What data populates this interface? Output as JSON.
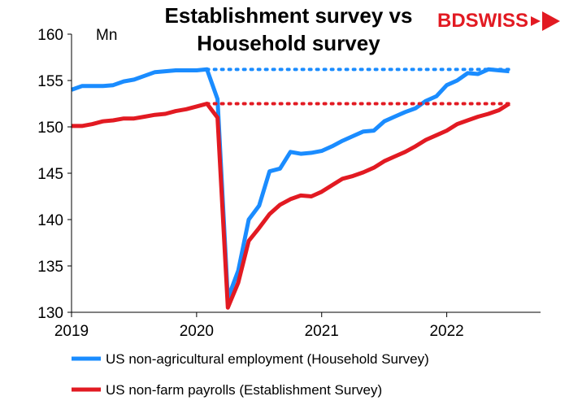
{
  "logo": {
    "text": "BDSWISS",
    "color": "#e21a22"
  },
  "chart_data": {
    "type": "line",
    "title_line1": "Establishment survey vs",
    "title_line2": "Household survey",
    "unit_label": "Mn",
    "xlabel": "",
    "ylabel": "",
    "ylim": [
      130,
      160
    ],
    "yticks": [
      130,
      135,
      140,
      145,
      150,
      155,
      160
    ],
    "xlim": [
      2019.0,
      2022.75
    ],
    "xticks": [
      {
        "value": 2019,
        "label": "2019"
      },
      {
        "value": 2020,
        "label": "2020"
      },
      {
        "value": 2021,
        "label": "2021"
      },
      {
        "value": 2022,
        "label": "2022"
      }
    ],
    "grid": false,
    "legend_position": "bottom",
    "series": [
      {
        "name": "US non-agricultural employment (Household Survey)",
        "color": "#1a8cff",
        "points": [
          [
            2019.0,
            154.0
          ],
          [
            2019.083,
            154.4
          ],
          [
            2019.167,
            154.4
          ],
          [
            2019.25,
            154.4
          ],
          [
            2019.333,
            154.5
          ],
          [
            2019.417,
            154.9
          ],
          [
            2019.5,
            155.1
          ],
          [
            2019.583,
            155.5
          ],
          [
            2019.667,
            155.9
          ],
          [
            2019.75,
            156.0
          ],
          [
            2019.833,
            156.1
          ],
          [
            2019.917,
            156.1
          ],
          [
            2020.0,
            156.1
          ],
          [
            2020.083,
            156.2
          ],
          [
            2020.167,
            153.0
          ],
          [
            2020.25,
            131.5
          ],
          [
            2020.333,
            134.5
          ],
          [
            2020.417,
            140.0
          ],
          [
            2020.5,
            141.5
          ],
          [
            2020.583,
            145.2
          ],
          [
            2020.667,
            145.5
          ],
          [
            2020.75,
            147.3
          ],
          [
            2020.833,
            147.1
          ],
          [
            2020.917,
            147.2
          ],
          [
            2021.0,
            147.4
          ],
          [
            2021.083,
            147.9
          ],
          [
            2021.167,
            148.5
          ],
          [
            2021.25,
            149.0
          ],
          [
            2021.333,
            149.5
          ],
          [
            2021.417,
            149.6
          ],
          [
            2021.5,
            150.6
          ],
          [
            2021.583,
            151.1
          ],
          [
            2021.667,
            151.6
          ],
          [
            2021.75,
            152.0
          ],
          [
            2021.833,
            152.8
          ],
          [
            2021.917,
            153.3
          ],
          [
            2022.0,
            154.5
          ],
          [
            2022.083,
            155.0
          ],
          [
            2022.167,
            155.8
          ],
          [
            2022.25,
            155.7
          ],
          [
            2022.333,
            156.2
          ],
          [
            2022.417,
            156.1
          ],
          [
            2022.5,
            156.0
          ]
        ],
        "reference_level": 156.2
      },
      {
        "name": "US non-farm payrolls (Establishment Survey)",
        "color": "#e21a22",
        "points": [
          [
            2019.0,
            150.1
          ],
          [
            2019.083,
            150.1
          ],
          [
            2019.167,
            150.3
          ],
          [
            2019.25,
            150.6
          ],
          [
            2019.333,
            150.7
          ],
          [
            2019.417,
            150.9
          ],
          [
            2019.5,
            150.9
          ],
          [
            2019.583,
            151.1
          ],
          [
            2019.667,
            151.3
          ],
          [
            2019.75,
            151.4
          ],
          [
            2019.833,
            151.7
          ],
          [
            2019.917,
            151.9
          ],
          [
            2020.0,
            152.2
          ],
          [
            2020.083,
            152.5
          ],
          [
            2020.167,
            151.0
          ],
          [
            2020.25,
            130.5
          ],
          [
            2020.333,
            133.2
          ],
          [
            2020.417,
            137.7
          ],
          [
            2020.5,
            139.1
          ],
          [
            2020.583,
            140.6
          ],
          [
            2020.667,
            141.6
          ],
          [
            2020.75,
            142.2
          ],
          [
            2020.833,
            142.6
          ],
          [
            2020.917,
            142.5
          ],
          [
            2021.0,
            143.0
          ],
          [
            2021.083,
            143.7
          ],
          [
            2021.167,
            144.4
          ],
          [
            2021.25,
            144.7
          ],
          [
            2021.333,
            145.1
          ],
          [
            2021.417,
            145.6
          ],
          [
            2021.5,
            146.3
          ],
          [
            2021.583,
            146.8
          ],
          [
            2021.667,
            147.3
          ],
          [
            2021.75,
            147.9
          ],
          [
            2021.833,
            148.6
          ],
          [
            2021.917,
            149.1
          ],
          [
            2022.0,
            149.6
          ],
          [
            2022.083,
            150.3
          ],
          [
            2022.167,
            150.7
          ],
          [
            2022.25,
            151.1
          ],
          [
            2022.333,
            151.4
          ],
          [
            2022.417,
            151.8
          ],
          [
            2022.5,
            152.5
          ]
        ],
        "reference_level": 152.5
      }
    ]
  }
}
